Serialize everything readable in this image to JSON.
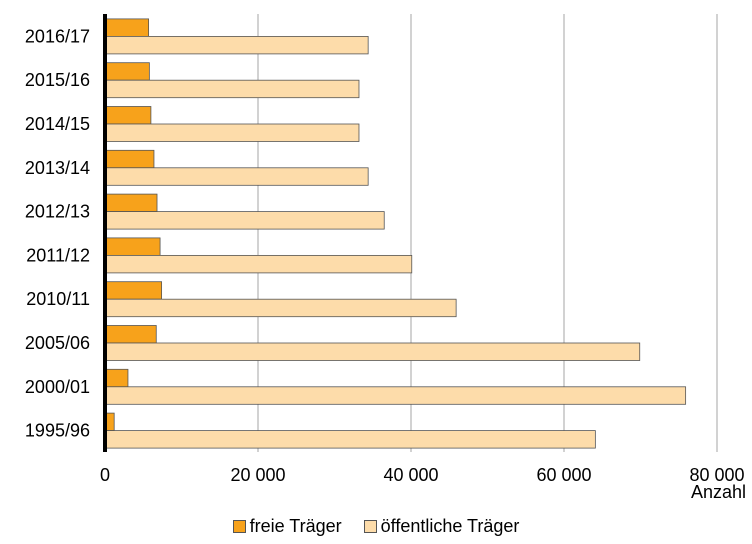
{
  "chart_data": {
    "type": "bar",
    "orientation": "horizontal",
    "categories": [
      "1995/96",
      "2000/01",
      "2005/06",
      "2010/11",
      "2011/12",
      "2012/13",
      "2013/14",
      "2014/15",
      "2015/16",
      "2016/17"
    ],
    "series": [
      {
        "name": "freie Träger",
        "color": "#f7a21b",
        "values": [
          1200,
          3000,
          6700,
          7400,
          7200,
          6800,
          6400,
          6000,
          5800,
          5700
        ]
      },
      {
        "name": "öffentliche Träger",
        "color": "#fddcaa",
        "values": [
          64100,
          75900,
          69900,
          45900,
          40100,
          36500,
          34400,
          33200,
          33200,
          34400
        ]
      }
    ],
    "xlim": [
      0,
      80000
    ],
    "xticks": [
      0,
      20000,
      40000,
      60000,
      80000
    ],
    "xtick_labels": [
      "0",
      "20 000",
      "40 000",
      "60 000",
      "80 000"
    ],
    "xlabel": "Anzahl",
    "grid": "vertical",
    "legend": "bottom"
  }
}
